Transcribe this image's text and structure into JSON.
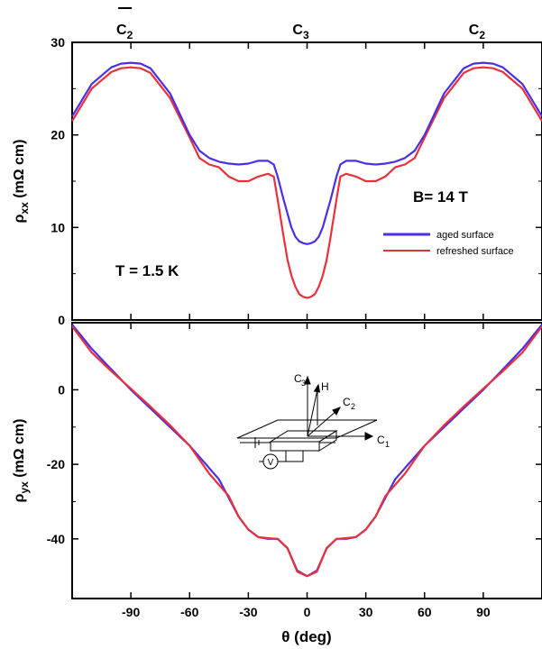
{
  "chart_data": [
    {
      "type": "line",
      "panel": "top",
      "xlim": [
        -120,
        120
      ],
      "ylim": [
        0,
        30
      ],
      "yticks": [
        0,
        10,
        20,
        30
      ],
      "ylabel": {
        "base": "ρ",
        "sub": "xx",
        "unit": " (mΩ cm)"
      },
      "top_axis_labels": [
        {
          "x": -90,
          "base": "C",
          "sub": "2",
          "overbar": true
        },
        {
          "x": 0,
          "base": "C",
          "sub": "3",
          "overbar": false
        },
        {
          "x": 90,
          "base": "C",
          "sub": "2",
          "overbar": false
        }
      ],
      "annotations": {
        "field": "B= 14 T",
        "temperature": "T = 1.5 K"
      },
      "series": [
        {
          "name": "aged surface",
          "color": "#4a2ee8",
          "x": [
            -120,
            -110,
            -100,
            -95,
            -90,
            -85,
            -80,
            -70,
            -60,
            -55,
            -50,
            -45,
            -40,
            -35,
            -30,
            -25,
            -20,
            -17,
            -15,
            -12,
            -10,
            -8,
            -6,
            -4,
            -2,
            0,
            2,
            4,
            6,
            8,
            10,
            12,
            15,
            17,
            20,
            25,
            30,
            35,
            40,
            45,
            50,
            55,
            60,
            70,
            80,
            85,
            90,
            95,
            100,
            110,
            120
          ],
          "y": [
            22,
            25.5,
            27.3,
            27.7,
            27.8,
            27.7,
            27.2,
            24.5,
            20,
            18.3,
            17.5,
            17.1,
            16.9,
            16.8,
            16.9,
            17.2,
            17.2,
            16.8,
            15.5,
            13,
            11.5,
            10,
            9,
            8.5,
            8.3,
            8.2,
            8.3,
            8.5,
            9,
            10,
            11.5,
            13,
            15.5,
            16.8,
            17.2,
            17.2,
            16.9,
            16.8,
            16.9,
            17.1,
            17.5,
            18.3,
            20,
            24.5,
            27.2,
            27.7,
            27.8,
            27.7,
            27.3,
            25.5,
            22
          ]
        },
        {
          "name": "refreshed surface",
          "color": "#e8313b",
          "x": [
            -120,
            -110,
            -100,
            -95,
            -90,
            -85,
            -80,
            -70,
            -60,
            -55,
            -50,
            -45,
            -40,
            -35,
            -30,
            -25,
            -20,
            -17,
            -15,
            -12,
            -10,
            -8,
            -6,
            -4,
            -2,
            0,
            2,
            4,
            6,
            8,
            10,
            12,
            15,
            17,
            20,
            25,
            30,
            35,
            40,
            45,
            50,
            55,
            60,
            70,
            80,
            85,
            90,
            95,
            100,
            110,
            120
          ],
          "y": [
            21.5,
            25,
            26.8,
            27.2,
            27.3,
            27.2,
            26.7,
            24,
            19.7,
            17.5,
            16.8,
            16.5,
            15.5,
            15,
            15,
            15.5,
            15.8,
            15.5,
            13,
            9,
            6.5,
            4.8,
            3.6,
            2.8,
            2.5,
            2.4,
            2.5,
            2.8,
            3.6,
            4.8,
            6.5,
            9,
            13,
            15.5,
            15.8,
            15.5,
            15,
            15,
            15.5,
            16.5,
            16.8,
            17.5,
            19.7,
            24,
            26.7,
            27.2,
            27.3,
            27.2,
            26.8,
            25,
            21.5
          ]
        }
      ]
    },
    {
      "type": "line",
      "panel": "bottom",
      "xlim": [
        -120,
        120
      ],
      "ylim": [
        -56,
        18
      ],
      "yticks": [
        -40,
        -20,
        0
      ],
      "xticks": [
        -90,
        -60,
        -30,
        0,
        30,
        60,
        90
      ],
      "xlabel": "θ  (deg)",
      "ylabel": {
        "base": "ρ",
        "sub": "yx",
        "unit": " (mΩ cm)"
      },
      "series": [
        {
          "name": "aged surface",
          "color": "#4a2ee8",
          "x": [
            -120,
            -110,
            -100,
            -90,
            -80,
            -70,
            -60,
            -50,
            -45,
            -40,
            -35,
            -30,
            -25,
            -20,
            -15,
            -10,
            -5,
            0,
            5,
            10,
            15,
            20,
            25,
            30,
            35,
            40,
            45,
            50,
            60,
            70,
            80,
            90,
            100,
            110,
            120
          ],
          "y": [
            17.5,
            11,
            5.5,
            0,
            -5,
            -10,
            -15,
            -21,
            -24,
            -29,
            -34,
            -37.5,
            -39.5,
            -40,
            -40,
            -42.5,
            -48.5,
            -50,
            -48.5,
            -42.5,
            -40,
            -40,
            -39.5,
            -37.5,
            -34,
            -29,
            -24,
            -21,
            -15,
            -10,
            -5,
            0,
            5.5,
            11,
            17.5
          ]
        },
        {
          "name": "refreshed surface",
          "color": "#e8313b",
          "x": [
            -120,
            -110,
            -100,
            -90,
            -80,
            -70,
            -60,
            -50,
            -45,
            -40,
            -35,
            -30,
            -25,
            -20,
            -15,
            -10,
            -5,
            0,
            5,
            10,
            15,
            20,
            25,
            30,
            35,
            40,
            45,
            50,
            60,
            70,
            80,
            90,
            100,
            110,
            120
          ],
          "y": [
            17,
            10,
            5,
            0.3,
            -4.5,
            -9.5,
            -15,
            -22.5,
            -25.5,
            -28.5,
            -34,
            -37.5,
            -39.5,
            -39.8,
            -40,
            -42.5,
            -48.8,
            -50,
            -48.8,
            -42.5,
            -40,
            -39.8,
            -39.5,
            -37.5,
            -34,
            -28.5,
            -25.5,
            -22.5,
            -15,
            -9.5,
            -4.5,
            0.3,
            5,
            10,
            17
          ]
        }
      ],
      "inset": {
        "labels": {
          "c3": {
            "base": "C",
            "sub": "3"
          },
          "h": "H",
          "c2": {
            "base": "C",
            "sub": "2"
          },
          "c1": {
            "base": "C",
            "sub": "1"
          },
          "v": "V"
        }
      }
    }
  ]
}
